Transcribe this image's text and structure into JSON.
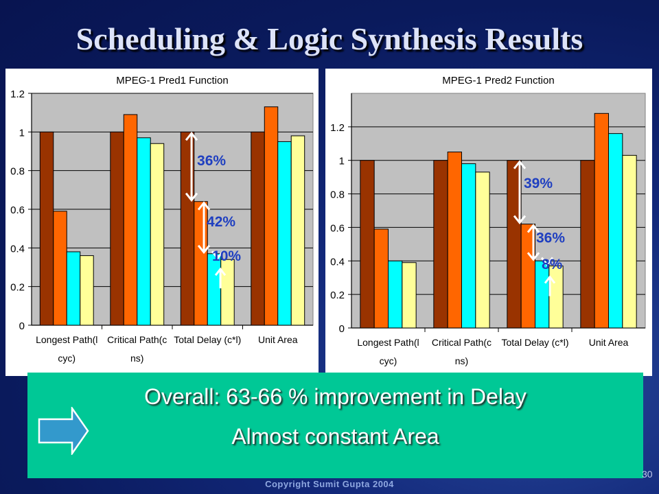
{
  "title": "Scheduling & Logic Synthesis Results",
  "chart_data": [
    {
      "type": "bar",
      "title": "MPEG-1 Pred1 Function",
      "categories": [
        [
          "Longest Path(l",
          "cyc)"
        ],
        [
          "Critical Path(c",
          "ns)"
        ],
        [
          "Total Delay (c*l)"
        ],
        [
          "Unit Area"
        ]
      ],
      "series": [
        {
          "values": [
            1.0,
            1.0,
            1.0,
            1.0
          ]
        },
        {
          "values": [
            0.59,
            1.09,
            0.64,
            1.13
          ]
        },
        {
          "values": [
            0.38,
            0.97,
            0.37,
            0.95
          ]
        },
        {
          "values": [
            0.36,
            0.94,
            0.34,
            0.98
          ]
        }
      ],
      "series_colors": [
        "#993300",
        "#ff6600",
        "#00ffff",
        "#ffff99"
      ],
      "ylim": [
        0,
        1.2
      ],
      "yticks": [
        "0",
        "0.2",
        "0.4",
        "0.6",
        "0.8",
        "1",
        "1.2"
      ],
      "grid": true,
      "annotations": [
        {
          "text": "36%",
          "category": 2,
          "from": 1.0,
          "to": 0.64
        },
        {
          "text": "42%",
          "category": 2,
          "from": 0.64,
          "to": 0.37
        },
        {
          "text": "10%",
          "category": 2,
          "from": 0.37,
          "to": 0.34
        }
      ]
    },
    {
      "type": "bar",
      "title": "MPEG-1 Pred2 Function",
      "categories": [
        [
          "Longest Path(l",
          "cyc)"
        ],
        [
          "Critical Path(c",
          "ns)"
        ],
        [
          "Total Delay (c*l)"
        ],
        [
          "Unit Area"
        ]
      ],
      "series": [
        {
          "values": [
            1.0,
            1.0,
            1.0,
            1.0
          ]
        },
        {
          "values": [
            0.59,
            1.05,
            0.62,
            1.28
          ]
        },
        {
          "values": [
            0.4,
            0.98,
            0.4,
            1.16
          ]
        },
        {
          "values": [
            0.39,
            0.93,
            0.37,
            1.03
          ]
        }
      ],
      "series_colors": [
        "#993300",
        "#ff6600",
        "#00ffff",
        "#ffff99"
      ],
      "ylim": [
        0,
        1.4
      ],
      "yticks": [
        "0",
        "0.2",
        "0.4",
        "0.6",
        "0.8",
        "1",
        "1.2"
      ],
      "grid": true,
      "annotations": [
        {
          "text": "39%",
          "category": 2,
          "from": 1.0,
          "to": 0.62
        },
        {
          "text": "36%",
          "category": 2,
          "from": 0.62,
          "to": 0.4
        },
        {
          "text": "8%",
          "category": 2,
          "from": 0.4,
          "to": 0.37
        }
      ]
    }
  ],
  "callout": {
    "line1": "Overall: 63-66 % improvement in Delay",
    "line2": "Almost constant Area",
    "arrow_icon": "right-arrow-icon"
  },
  "footer": "Copyright Sumit Gupta 2004",
  "page_number": "30"
}
